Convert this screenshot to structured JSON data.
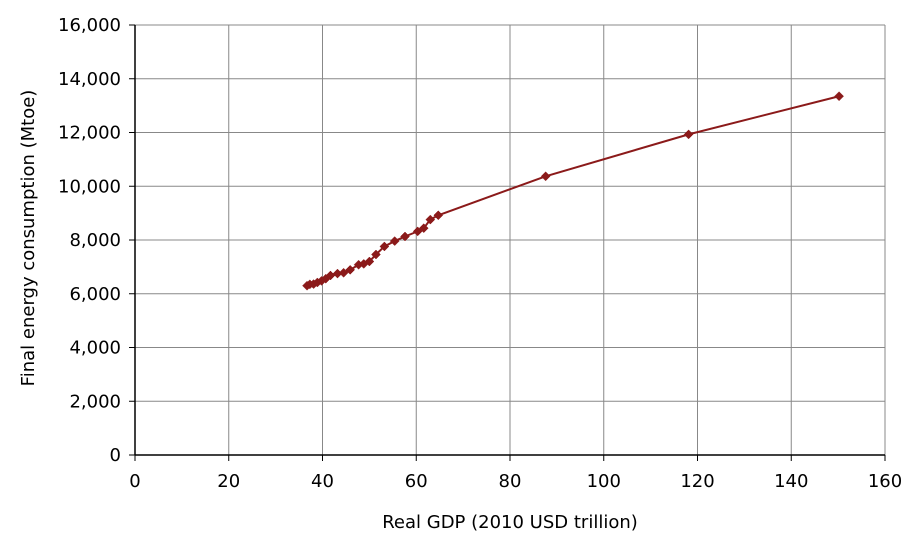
{
  "chart_data": {
    "type": "line",
    "title": "",
    "xlabel": "Real GDP (2010 USD trillion)",
    "ylabel": "Final energy consumption (Mtoe)",
    "xlim": [
      0,
      160
    ],
    "ylim": [
      0,
      16000
    ],
    "x_ticks": [
      0,
      20,
      40,
      60,
      80,
      100,
      120,
      140,
      160
    ],
    "y_ticks": [
      0,
      2000,
      4000,
      6000,
      8000,
      10000,
      12000,
      14000,
      16000
    ],
    "x_tick_labels": [
      "0",
      "20",
      "40",
      "60",
      "80",
      "100",
      "120",
      "140",
      "160"
    ],
    "y_tick_labels": [
      "0",
      "2,000",
      "4,000",
      "6,000",
      "8,000",
      "10,000",
      "12,000",
      "14,000",
      "16,000"
    ],
    "grid": true,
    "legend": "none",
    "colors": {
      "series": "#8b1a1a",
      "marker": "#8b1a1a",
      "grid": "#888888",
      "axis": "#000000"
    },
    "series": [
      {
        "marker": "diamond",
        "points": [
          [
            36.7,
            6300
          ],
          [
            37.3,
            6350
          ],
          [
            38.1,
            6360
          ],
          [
            38.9,
            6420
          ],
          [
            39.8,
            6480
          ],
          [
            40.7,
            6560
          ],
          [
            41.7,
            6680
          ],
          [
            43.2,
            6750
          ],
          [
            44.5,
            6780
          ],
          [
            45.9,
            6890
          ],
          [
            47.7,
            7080
          ],
          [
            48.8,
            7110
          ],
          [
            50.0,
            7200
          ],
          [
            51.4,
            7460
          ],
          [
            53.2,
            7760
          ],
          [
            55.4,
            7960
          ],
          [
            57.6,
            8130
          ],
          [
            60.3,
            8320
          ],
          [
            61.6,
            8440
          ],
          [
            63.0,
            8760
          ],
          [
            64.7,
            8920
          ],
          [
            87.6,
            10370
          ],
          [
            118.1,
            11930
          ],
          [
            150.2,
            13350
          ]
        ]
      }
    ]
  }
}
